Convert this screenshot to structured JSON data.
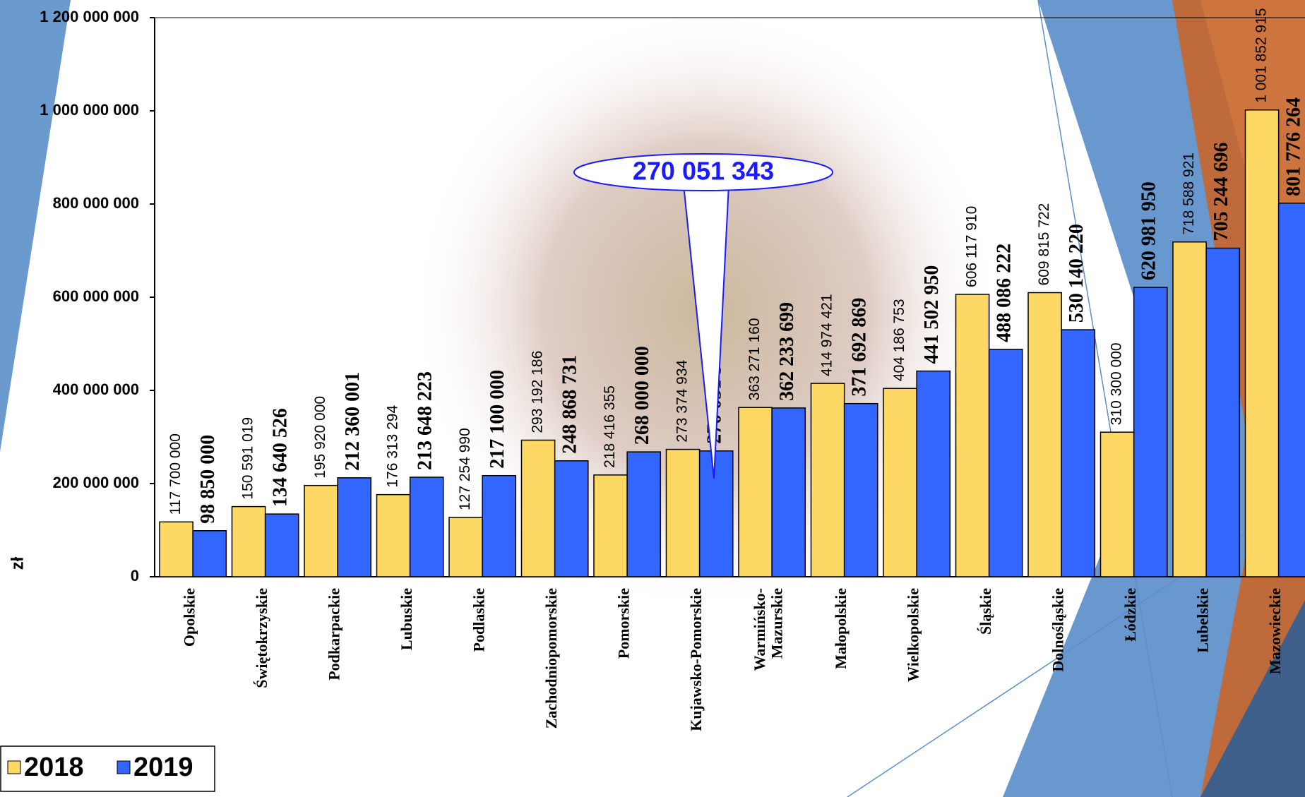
{
  "chart_data": {
    "type": "bar",
    "categories": [
      "Opolskie",
      "Świętokrzyskie",
      "Podkarpackie",
      "Lubuskie",
      "Podlaskie",
      "Zachodniopomorskie",
      "Pomorskie",
      "Kujawsko-Pomorskie",
      "Warmińsko-\nMazurskie",
      "Małopolskie",
      "Wielkopolskie",
      "Śląskie",
      "Dolnośląskie",
      "Łódzkie",
      "Lubelskie",
      "Mazowieckie"
    ],
    "series": [
      {
        "name": "2018",
        "color": "#fdd865",
        "values": [
          117700000,
          150591019,
          195920000,
          176313294,
          127254990,
          293192186,
          218416355,
          273374934,
          363271160,
          414974421,
          404186753,
          606117910,
          609815722,
          310300000,
          718588921,
          1001852915
        ],
        "value_labels": [
          "117 700 000",
          "150 591 019",
          "195 920 000",
          "176 313 294",
          "127 254 990",
          "293 192 186",
          "218 416 355",
          "273 374 934",
          "363 271 160",
          "414 974 421",
          "404 186 753",
          "606 117 910",
          "609 815 722",
          "310 300 000",
          "718 588 921",
          "1 001 852 915"
        ]
      },
      {
        "name": "2019",
        "color": "#3366ff",
        "values": [
          98850000,
          134640526,
          212360001,
          213648223,
          217100000,
          248868731,
          268000000,
          270051343,
          362233699,
          371692869,
          441502950,
          488086222,
          530140220,
          620981950,
          705244696,
          801776264
        ],
        "value_labels": [
          "98 850 000",
          "134 640 526",
          "212 360 001",
          "213 648 223",
          "217 100 000",
          "248 868 731",
          "268 000 000",
          "270 051 343",
          "362 233 699",
          "371 692 869",
          "441 502 950",
          "488 086 222",
          "530 140 220",
          "620 981 950",
          "705 244 696",
          "801 776 264"
        ]
      }
    ],
    "y_label": "zł",
    "annotation": "270 051 343",
    "ylim": [
      0,
      1200000000
    ],
    "yticks": [
      {
        "value": 0,
        "label": "0"
      },
      {
        "value": 200000000,
        "label": "200 000 000"
      },
      {
        "value": 400000000,
        "label": "400 000 000"
      },
      {
        "value": 600000000,
        "label": "600 000 000"
      },
      {
        "value": 800000000,
        "label": "800 000 000"
      },
      {
        "value": 1000000000,
        "label": "1 000 000 000"
      },
      {
        "value": 1200000000,
        "label": "1 200 000 000"
      }
    ],
    "grid": false,
    "legend": "bottom-left"
  }
}
